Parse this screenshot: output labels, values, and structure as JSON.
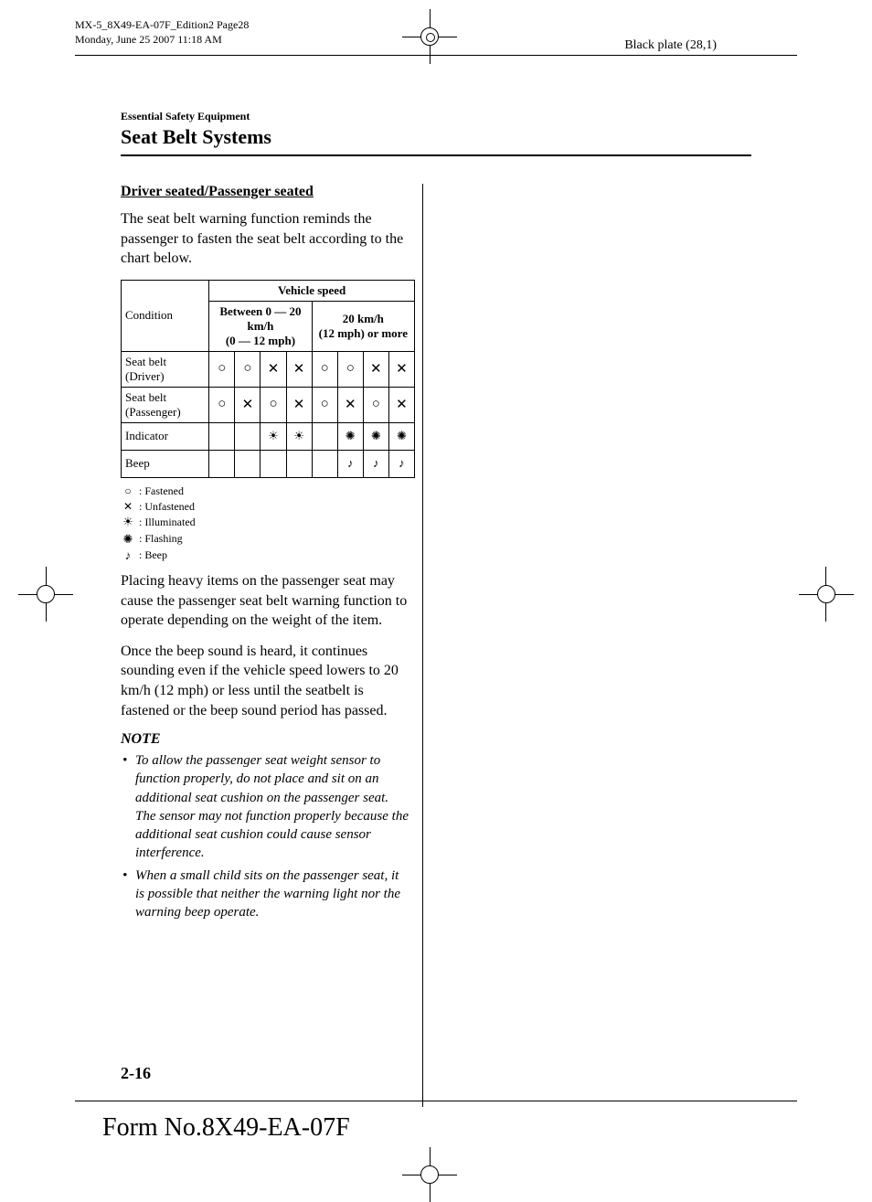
{
  "header": {
    "line1": "MX-5_8X49-EA-07F_Edition2 Page28",
    "line2": "Monday, June 25 2007 11:18 AM",
    "black_plate": "Black plate (28,1)"
  },
  "breadcrumb": "Essential Safety Equipment",
  "section_title": "Seat Belt Systems",
  "subheading": "Driver seated/Passenger seated",
  "intro": "The seat belt warning function reminds the passenger to fasten the seat belt according to the chart below.",
  "table": {
    "header_condition": "Condition",
    "header_speed": "Vehicle speed",
    "header_low": "Between 0 — 20 km/h\n(0 — 12 mph)",
    "header_high": "20 km/h\n(12 mph) or more",
    "rows": [
      {
        "label": "Seat belt (Driver)",
        "cells": [
          "O",
          "O",
          "X",
          "X",
          "O",
          "O",
          "X",
          "X"
        ]
      },
      {
        "label": "Seat belt (Passenger)",
        "cells": [
          "O",
          "X",
          "O",
          "X",
          "O",
          "X",
          "O",
          "X"
        ]
      },
      {
        "label": "Indicator",
        "cells": [
          "",
          "",
          "P",
          "P",
          "",
          "F",
          "F",
          "F"
        ]
      },
      {
        "label": "Beep",
        "cells": [
          "",
          "",
          "",
          "",
          "",
          "B",
          "B",
          "B"
        ]
      }
    ]
  },
  "legend": {
    "fastened": ": Fastened",
    "unfastened": ": Unfastened",
    "illuminated": ": Illuminated",
    "flashing": ": Flashing",
    "beep": ": Beep"
  },
  "para1": "Placing heavy items on the passenger seat may cause the passenger seat belt warning function to operate depending on the weight of the item.",
  "para2": "Once the beep sound is heard, it continues sounding even if the vehicle speed lowers to 20 km/h (12 mph) or less until the seatbelt is fastened or the beep sound period has passed.",
  "note_heading": "NOTE",
  "notes": [
    "To allow the passenger seat weight sensor to function properly, do not place and sit on an additional seat cushion on the passenger seat. The sensor may not function properly because the additional seat cushion could cause sensor interference.",
    "When a small child sits on the passenger seat, it is possible that neither the warning light nor the warning beep operate."
  ],
  "page_num": "2-16",
  "form_no": "Form No.8X49-EA-07F"
}
